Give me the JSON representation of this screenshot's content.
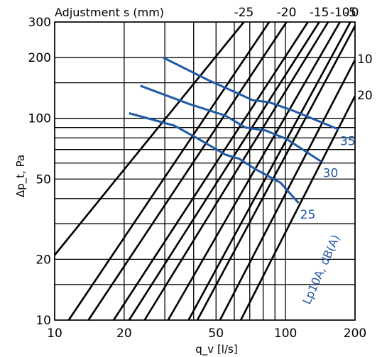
{
  "chart_data": {
    "type": "line",
    "title": "",
    "xlabel": "q_v [l/s]",
    "ylabel": "Δp_t, Pa",
    "x_scale": "log",
    "y_scale": "log",
    "xlim": [
      10,
      200
    ],
    "ylim": [
      10,
      300
    ],
    "x_tick_labels": [
      {
        "value": 10,
        "label": "10"
      },
      {
        "value": 20,
        "label": "20"
      },
      {
        "value": 50,
        "label": "50"
      },
      {
        "value": 100,
        "label": "100"
      },
      {
        "value": 200,
        "label": "200"
      }
    ],
    "y_tick_labels": [
      {
        "value": 10,
        "label": "10"
      },
      {
        "value": 20,
        "label": "20"
      },
      {
        "value": 50,
        "label": "50"
      },
      {
        "value": 100,
        "label": "100"
      },
      {
        "value": 200,
        "label": "200"
      },
      {
        "value": 300,
        "label": "300"
      }
    ],
    "x_gridlines": [
      10,
      20,
      30,
      40,
      50,
      60,
      70,
      80,
      90,
      100,
      200
    ],
    "y_gridlines": [
      10,
      15,
      20,
      30,
      40,
      50,
      60,
      70,
      80,
      90,
      100,
      150,
      200,
      300
    ],
    "adjustment_title": "Adjustment s (mm)",
    "adjustment_lines": [
      {
        "label": "-25",
        "points": [
          [
            10,
            21
          ],
          [
            66,
            300
          ]
        ]
      },
      {
        "label": "",
        "points": [
          [
            11.5,
            10
          ],
          [
            85,
            300
          ]
        ]
      },
      {
        "label": "-20",
        "points": [
          [
            14,
            10
          ],
          [
            101,
            300
          ]
        ]
      },
      {
        "label": "",
        "points": [
          [
            18,
            10
          ],
          [
            125,
            300
          ]
        ]
      },
      {
        "label": "-15",
        "points": [
          [
            21,
            10
          ],
          [
            140,
            300
          ]
        ]
      },
      {
        "label": "",
        "points": [
          [
            24.5,
            10
          ],
          [
            153,
            300
          ]
        ]
      },
      {
        "label": "-10",
        "points": [
          [
            31,
            10
          ],
          [
            172,
            300
          ]
        ]
      },
      {
        "label": "-5",
        "points": [
          [
            38,
            10
          ],
          [
            191,
            300
          ]
        ]
      },
      {
        "label": "0",
        "points": [
          [
            41.5,
            10
          ],
          [
            200,
            287
          ]
        ]
      },
      {
        "label": "10",
        "points": [
          [
            52,
            10
          ],
          [
            200,
            195
          ]
        ]
      },
      {
        "label": "20",
        "points": [
          [
            64,
            10
          ],
          [
            200,
            129
          ]
        ]
      }
    ],
    "series": [
      {
        "name": "35",
        "points": [
          [
            29.5,
            200
          ],
          [
            46,
            155
          ],
          [
            62,
            133
          ],
          [
            72,
            123
          ],
          [
            85,
            120
          ],
          [
            108,
            109
          ],
          [
            170,
            88
          ]
        ]
      },
      {
        "name": "30",
        "points": [
          [
            23.5,
            145
          ],
          [
            38,
            118
          ],
          [
            55,
            103
          ],
          [
            67,
            90
          ],
          [
            82,
            87
          ],
          [
            101,
            79
          ],
          [
            143,
            61
          ]
        ]
      },
      {
        "name": "25",
        "points": [
          [
            21,
            106
          ],
          [
            33,
            92
          ],
          [
            42,
            79
          ],
          [
            55,
            66
          ],
          [
            63,
            63
          ],
          [
            74,
            56
          ],
          [
            95,
            48
          ],
          [
            114,
            38
          ]
        ]
      }
    ],
    "series_label": "Lp10A, dB(A)",
    "legend": "none",
    "grid": true
  }
}
